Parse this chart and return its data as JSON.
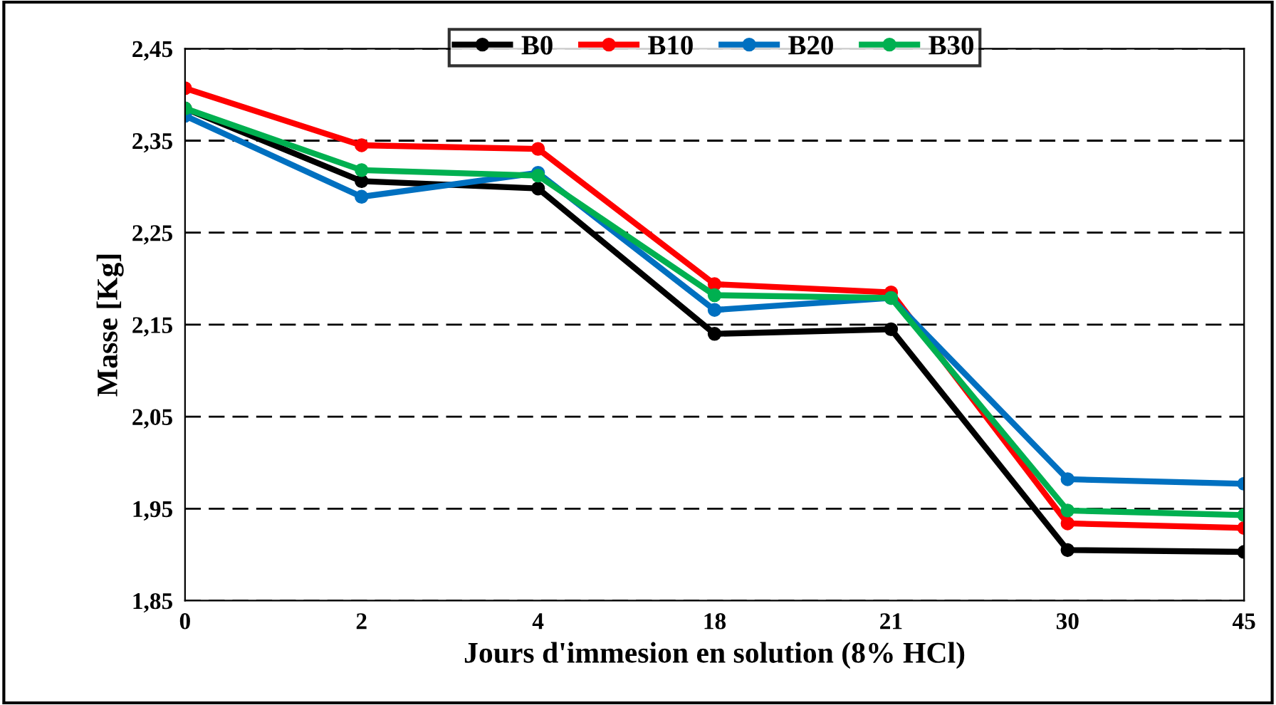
{
  "chart_data": {
    "type": "line",
    "xlabel": "Jours d'immesion en solution (8% HCl)",
    "ylabel": "Masse [Kg]",
    "categories": [
      "0",
      "2",
      "4",
      "18",
      "21",
      "30",
      "45"
    ],
    "series": [
      {
        "name": "B0",
        "color": "#000000",
        "values": [
          2.385,
          2.306,
          2.298,
          2.14,
          2.145,
          1.905,
          1.903
        ]
      },
      {
        "name": "B10",
        "color": "#ff0000",
        "values": [
          2.407,
          2.345,
          2.341,
          2.194,
          2.185,
          1.934,
          1.929
        ]
      },
      {
        "name": "B20",
        "color": "#0070c0",
        "values": [
          2.377,
          2.289,
          2.315,
          2.166,
          2.179,
          1.982,
          1.977
        ]
      },
      {
        "name": "B30",
        "color": "#00b050",
        "values": [
          2.385,
          2.318,
          2.312,
          2.182,
          2.179,
          1.948,
          1.943
        ]
      }
    ],
    "ylim": [
      1.85,
      2.45
    ],
    "yticks": [
      {
        "value": 1.85,
        "label": "1,85"
      },
      {
        "value": 1.95,
        "label": "1,95"
      },
      {
        "value": 2.05,
        "label": "2,05"
      },
      {
        "value": 2.15,
        "label": "2,15"
      },
      {
        "value": 2.25,
        "label": "2,25"
      },
      {
        "value": 2.35,
        "label": "2,35"
      },
      {
        "value": 2.45,
        "label": "2,45"
      }
    ],
    "grid": "y",
    "legend": "top",
    "marker": "circle",
    "line_style": "solid"
  }
}
